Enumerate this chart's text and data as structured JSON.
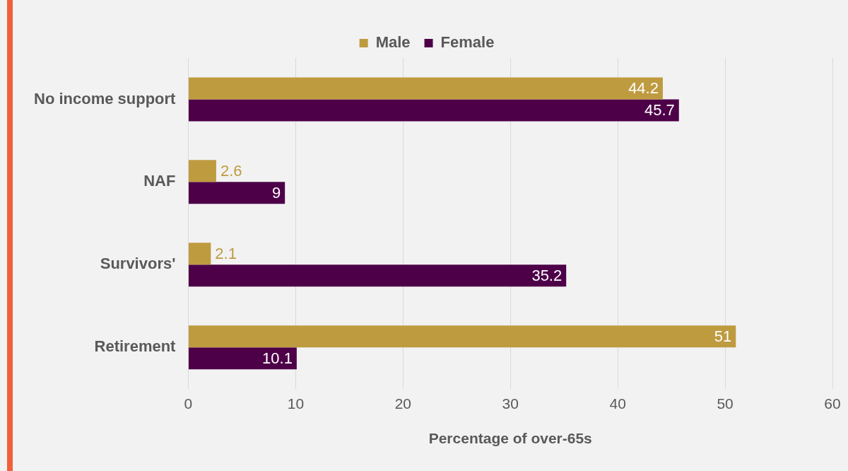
{
  "chart_data": {
    "type": "bar",
    "orientation": "horizontal",
    "xlabel": "Percentage of over-65s",
    "categories": [
      "No income support",
      "NAF",
      "Survivors'",
      "Retirement"
    ],
    "series": [
      {
        "name": "Male",
        "color": "#bf9b40",
        "values": [
          44.2,
          2.6,
          2.1,
          51
        ]
      },
      {
        "name": "Female",
        "color": "#4d0048",
        "values": [
          45.7,
          9,
          35.2,
          10.1
        ]
      }
    ],
    "xlim": [
      0,
      60
    ],
    "xticks": [
      0,
      10,
      20,
      30,
      40,
      50,
      60
    ],
    "grid": "x",
    "legend": "top",
    "data_labels": true
  }
}
